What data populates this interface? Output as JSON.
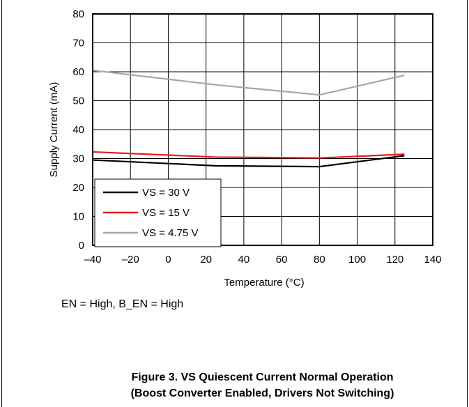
{
  "condition_text": "EN = High, B_EN = High",
  "caption": {
    "line1": "Figure 3. VS Quiescent Current Normal Operation",
    "line2": "(Boost Converter Enabled, Drivers Not Switching)"
  },
  "chart_data": {
    "type": "line",
    "title": "",
    "xlabel": "Temperature (°C)",
    "ylabel": "Supply Current (mA)",
    "xlim": [
      -40,
      140
    ],
    "ylim": [
      0,
      80
    ],
    "x_ticks": [
      -40,
      -20,
      0,
      20,
      40,
      60,
      80,
      100,
      120,
      140
    ],
    "x_tick_labels": [
      "–40",
      "–20",
      "0",
      "20",
      "40",
      "60",
      "80",
      "100",
      "120",
      "140"
    ],
    "y_ticks": [
      0,
      10,
      20,
      30,
      40,
      50,
      60,
      70,
      80
    ],
    "y_tick_labels": [
      "0",
      "10",
      "20",
      "30",
      "40",
      "50",
      "60",
      "70",
      "80"
    ],
    "grid": true,
    "legend_position": "bottom-left",
    "series": [
      {
        "name": "VS = 30 V",
        "color": "#000000",
        "x": [
          -40,
          25,
          80,
          125
        ],
        "y": [
          29.5,
          27.5,
          27.2,
          31.0
        ]
      },
      {
        "name": "VS = 15 V",
        "color": "#e8191e",
        "x": [
          -40,
          25,
          80,
          125
        ],
        "y": [
          32.3,
          30.5,
          30.2,
          31.5
        ]
      },
      {
        "name": "VS = 4.75 V",
        "color": "#a6a6a6",
        "x": [
          -40,
          25,
          80,
          125
        ],
        "y": [
          60.5,
          55.5,
          52.0,
          58.8
        ]
      }
    ]
  }
}
